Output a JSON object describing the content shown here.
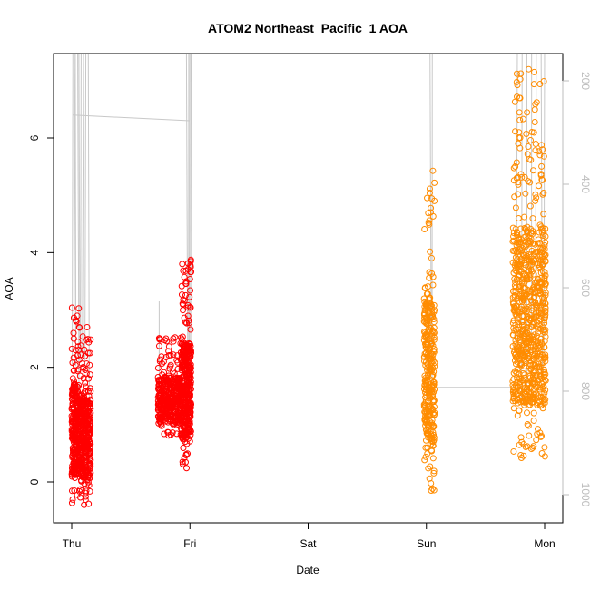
{
  "chart_data": {
    "type": "scatter",
    "title": "ATOM2 Northeast_Pacific_1 AOA",
    "xlabel": "Date",
    "ylabel": "AOA",
    "x_ticks": [
      "Thu",
      "Fri",
      "Sat",
      "Sun",
      "Mon"
    ],
    "xlim": [
      0,
      4
    ],
    "ylim": [
      -0.7,
      7.5
    ],
    "y_ticks": [
      0,
      2,
      4,
      6
    ],
    "y2_ticks": [
      200,
      400,
      600,
      800,
      1000
    ],
    "y2lim": [
      1020,
      150
    ],
    "grid": false,
    "series": [
      {
        "color": "#ff0000",
        "marker": "open-circle",
        "clusters": [
          {
            "x_start": 0.0,
            "x_end": 0.06,
            "y_min": -0.4,
            "y_max": 3.1,
            "n": 260
          },
          {
            "x_start": 0.06,
            "x_end": 0.16,
            "y_min": -0.4,
            "y_max": 2.7,
            "n": 380
          },
          {
            "x_start": 0.73,
            "x_end": 0.93,
            "y_min": 0.75,
            "y_max": 2.55,
            "n": 400
          },
          {
            "x_start": 0.93,
            "x_end": 1.01,
            "y_min": 0.2,
            "y_max": 3.9,
            "n": 360
          }
        ]
      },
      {
        "color": "#ff8c00",
        "marker": "open-circle",
        "clusters": [
          {
            "x_start": 2.98,
            "x_end": 3.07,
            "y_min": -0.15,
            "y_max": 5.5,
            "n": 320
          },
          {
            "x_start": 3.73,
            "x_end": 4.01,
            "y_min": 0.3,
            "y_max": 7.2,
            "n": 800
          }
        ]
      },
      {
        "name": "",
        "color": "#c8c8c8",
        "role": "profile-lines-right-axis",
        "segments": [
          {
            "x": [
              0.01,
              0.02,
              0.03,
              0.05,
              0.06,
              0.08,
              0.1,
              0.12,
              0.14,
              0.97,
              0.99,
              1.0,
              1.01,
              3.03,
              3.05,
              3.77,
              3.81,
              3.85,
              3.89,
              3.93,
              3.97,
              4.0
            ]
          }
        ]
      }
    ]
  }
}
